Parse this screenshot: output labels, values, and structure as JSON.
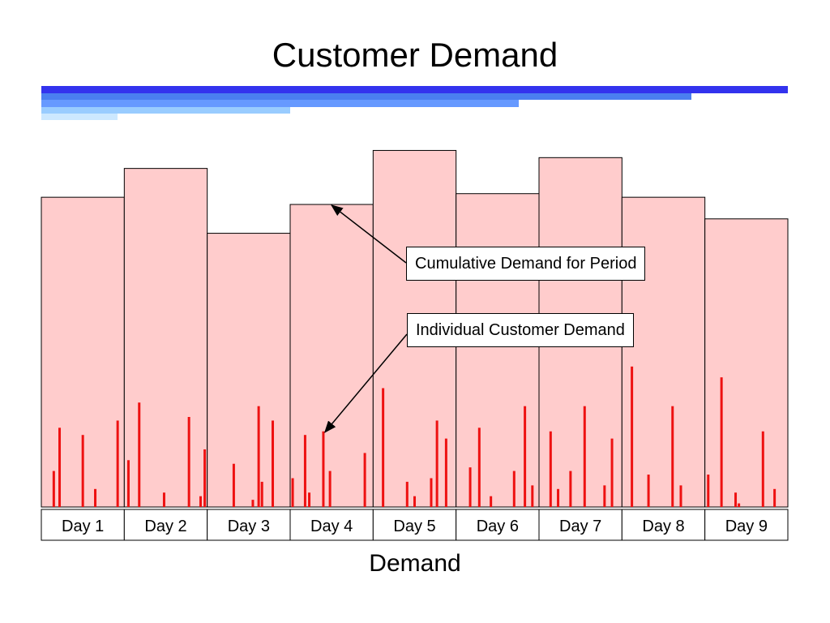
{
  "title": "Customer Demand",
  "colors": {
    "period_fill": "#ffcccc",
    "spike": "#ee1111",
    "border": "#000000"
  },
  "annotations": {
    "cumulative": "Cumulative Demand for Period",
    "individual": "Individual Customer Demand"
  },
  "chart_data": {
    "type": "bar",
    "xlabel": "Demand",
    "ylabel": "",
    "ylim": [
      0,
      100
    ],
    "categories": [
      "Day 1",
      "Day 2",
      "Day 3",
      "Day 4",
      "Day 5",
      "Day 6",
      "Day 7",
      "Day 8",
      "Day 9"
    ],
    "series": [
      {
        "values": [
          86,
          94,
          76,
          84,
          99,
          87,
          97,
          86,
          80
        ]
      }
    ],
    "individual_demand": [
      [
        [
          0.15,
          10
        ],
        [
          0.22,
          22
        ],
        [
          0.5,
          20
        ],
        [
          0.65,
          5
        ],
        [
          0.92,
          24
        ]
      ],
      [
        [
          0.05,
          13
        ],
        [
          0.18,
          29
        ],
        [
          0.48,
          4
        ],
        [
          0.78,
          25
        ],
        [
          0.92,
          3
        ],
        [
          0.97,
          16
        ]
      ],
      [
        [
          0.32,
          12
        ],
        [
          0.55,
          2
        ],
        [
          0.62,
          28
        ],
        [
          0.66,
          7
        ],
        [
          0.79,
          24
        ]
      ],
      [
        [
          0.03,
          8
        ],
        [
          0.18,
          20
        ],
        [
          0.23,
          4
        ],
        [
          0.4,
          21
        ],
        [
          0.48,
          10
        ],
        [
          0.9,
          15
        ]
      ],
      [
        [
          0.12,
          33
        ],
        [
          0.41,
          7
        ],
        [
          0.5,
          3
        ],
        [
          0.7,
          8
        ],
        [
          0.77,
          24
        ],
        [
          0.88,
          19
        ]
      ],
      [
        [
          0.17,
          11
        ],
        [
          0.28,
          22
        ],
        [
          0.42,
          3
        ],
        [
          0.7,
          10
        ],
        [
          0.83,
          28
        ],
        [
          0.92,
          6
        ]
      ],
      [
        [
          0.14,
          21
        ],
        [
          0.23,
          5
        ],
        [
          0.38,
          10
        ],
        [
          0.55,
          28
        ],
        [
          0.79,
          6
        ],
        [
          0.88,
          19
        ]
      ],
      [
        [
          0.12,
          39
        ],
        [
          0.32,
          9
        ],
        [
          0.61,
          28
        ],
        [
          0.71,
          6
        ]
      ],
      [
        [
          0.04,
          9
        ],
        [
          0.2,
          36
        ],
        [
          0.37,
          4
        ],
        [
          0.41,
          1
        ],
        [
          0.7,
          21
        ],
        [
          0.84,
          5
        ]
      ]
    ]
  }
}
